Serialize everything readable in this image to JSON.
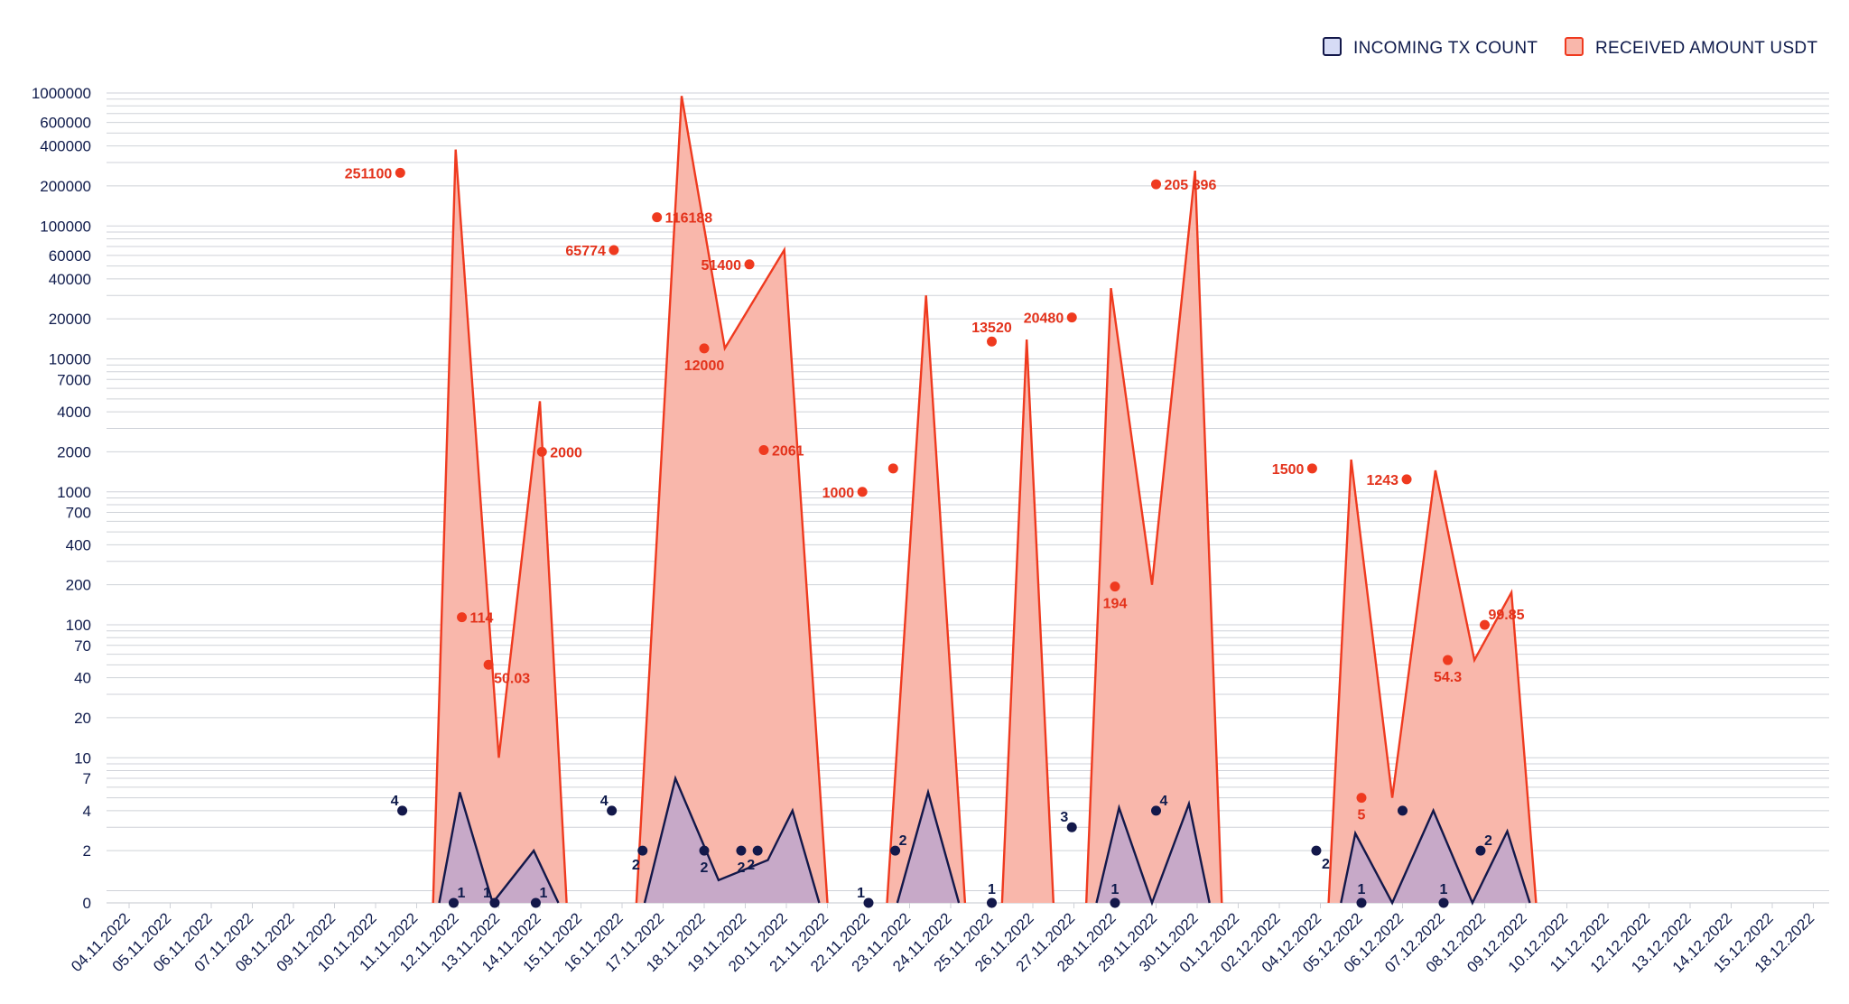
{
  "colors": {
    "received_line": "#ef3a1f",
    "received_fill": "#f9b7ab",
    "count_line": "#13184a",
    "count_fill": "#c7a9c8",
    "grid": "#cfd2d8",
    "text": "#0f1b4c",
    "legend_count_fill": "#d6dbf5"
  },
  "chart_data": {
    "type": "area",
    "y_scale": "log",
    "ylim": [
      0,
      1000000
    ],
    "yticks": [
      "1000000",
      "600000",
      "400000",
      "200000",
      "100000",
      "60000",
      "40000",
      "20000",
      "10000",
      "7000",
      "4000",
      "2000",
      "1000",
      "700",
      "400",
      "200",
      "100",
      "70",
      "40",
      "20",
      "10",
      "7",
      "4",
      "2",
      "0"
    ],
    "categories": [
      "04.11.2022",
      "05.11.2022",
      "06.11.2022",
      "07.11.2022",
      "08.11.2022",
      "09.11.2022",
      "10.11.2022",
      "11.11.2022",
      "12.11.2022",
      "13.11.2022",
      "14.11.2022",
      "15.11.2022",
      "16.11.2022",
      "17.11.2022",
      "18.11.2022",
      "19.11.2022",
      "20.11.2022",
      "21.11.2022",
      "22.11.2022",
      "23.11.2022",
      "24.11.2022",
      "25.11.2022",
      "26.11.2022",
      "27.11.2022",
      "28.11.2022",
      "29.11.2022",
      "30.11.2022",
      "01.12.2022",
      "02.12.2022",
      "04.12.2022",
      "05.12.2022",
      "06.12.2022",
      "07.12.2022",
      "08.12.2022",
      "09.12.2022",
      "10.12.2022",
      "11.12.2022",
      "12.12.2022",
      "13.12.2022",
      "14.12.2022",
      "15.12.2022",
      "18.12.2022"
    ],
    "legend": [
      {
        "name": "INCOMING TX COUNT",
        "key": "count"
      },
      {
        "name": "RECEIVED AMOUNT USDT",
        "key": "received"
      }
    ],
    "series": [
      {
        "name": "RECEIVED AMOUNT USDT",
        "points": [
          {
            "date": "11.11.2022",
            "value": 251100,
            "label": "251100"
          },
          {
            "date": "12.11.2022",
            "value": 114,
            "label": "114"
          },
          {
            "date": "13.11.2022",
            "value": 50.03,
            "label": "50.03"
          },
          {
            "date": "14.11.2022",
            "value": 2000,
            "label": "2000"
          },
          {
            "date": "16.11.2022",
            "value": 65774,
            "label": "65774"
          },
          {
            "date": "17.11.2022",
            "value": 116188,
            "label": "116188"
          },
          {
            "date": "18.11.2022",
            "value": 12000,
            "label": "12000"
          },
          {
            "date": "19.11.2022",
            "value": 51400,
            "label": "51400"
          },
          {
            "date": "20.11.2022",
            "value": 2061,
            "label": "2061"
          },
          {
            "date": "22.11.2022",
            "value": 1000,
            "label": "1000"
          },
          {
            "date": "23.11.2022",
            "value": 1500,
            "label": ""
          },
          {
            "date": "25.11.2022",
            "value": 13520,
            "label": "13520"
          },
          {
            "date": "27.11.2022",
            "value": 20480,
            "label": "20480"
          },
          {
            "date": "28.11.2022",
            "value": 194,
            "label": "194"
          },
          {
            "date": "29.11.2022",
            "value": 205896,
            "label": "205 896"
          },
          {
            "date": "04.12.2022",
            "value": 1500,
            "label": "1500"
          },
          {
            "date": "05.12.2022",
            "value": 5,
            "label": "5"
          },
          {
            "date": "06.12.2022",
            "value": 1243,
            "label": "1243"
          },
          {
            "date": "07.12.2022",
            "value": 54.3,
            "label": "54.3"
          },
          {
            "date": "08.12.2022",
            "value": 99.85,
            "label": "99.85"
          }
        ]
      },
      {
        "name": "INCOMING TX COUNT",
        "points": [
          {
            "date": "11.11.2022",
            "value": 4,
            "label": "4"
          },
          {
            "date": "12.11.2022",
            "value": 1,
            "label": "1"
          },
          {
            "date": "13.11.2022",
            "value": 1,
            "label": "1"
          },
          {
            "date": "14.11.2022",
            "value": 1,
            "label": "1"
          },
          {
            "date": "16.11.2022",
            "value": 4,
            "label": "4"
          },
          {
            "date": "17.11.2022",
            "value": 2,
            "label": "2"
          },
          {
            "date": "18.11.2022",
            "value": 2,
            "label": "2"
          },
          {
            "date": "19.11.2022",
            "value": 2,
            "label": "2"
          },
          {
            "date": "20.11.2022",
            "value": 2,
            "label": "2"
          },
          {
            "date": "22.11.2022",
            "value": 1,
            "label": "1"
          },
          {
            "date": "23.11.2022",
            "value": 2,
            "label": "2"
          },
          {
            "date": "25.11.2022",
            "value": 1,
            "label": "1"
          },
          {
            "date": "27.11.2022",
            "value": 3,
            "label": "3"
          },
          {
            "date": "28.11.2022",
            "value": 1,
            "label": "1"
          },
          {
            "date": "29.11.2022",
            "value": 4,
            "label": "4"
          },
          {
            "date": "04.12.2022",
            "value": 2,
            "label": "2"
          },
          {
            "date": "05.12.2022",
            "value": 1,
            "label": "1"
          },
          {
            "date": "06.12.2022",
            "value": 4,
            "label": ""
          },
          {
            "date": "07.12.2022",
            "value": 1,
            "label": "1"
          },
          {
            "date": "08.12.2022",
            "value": 2,
            "label": "2"
          }
        ]
      }
    ],
    "grid": true,
    "legend_position": "top-right"
  }
}
